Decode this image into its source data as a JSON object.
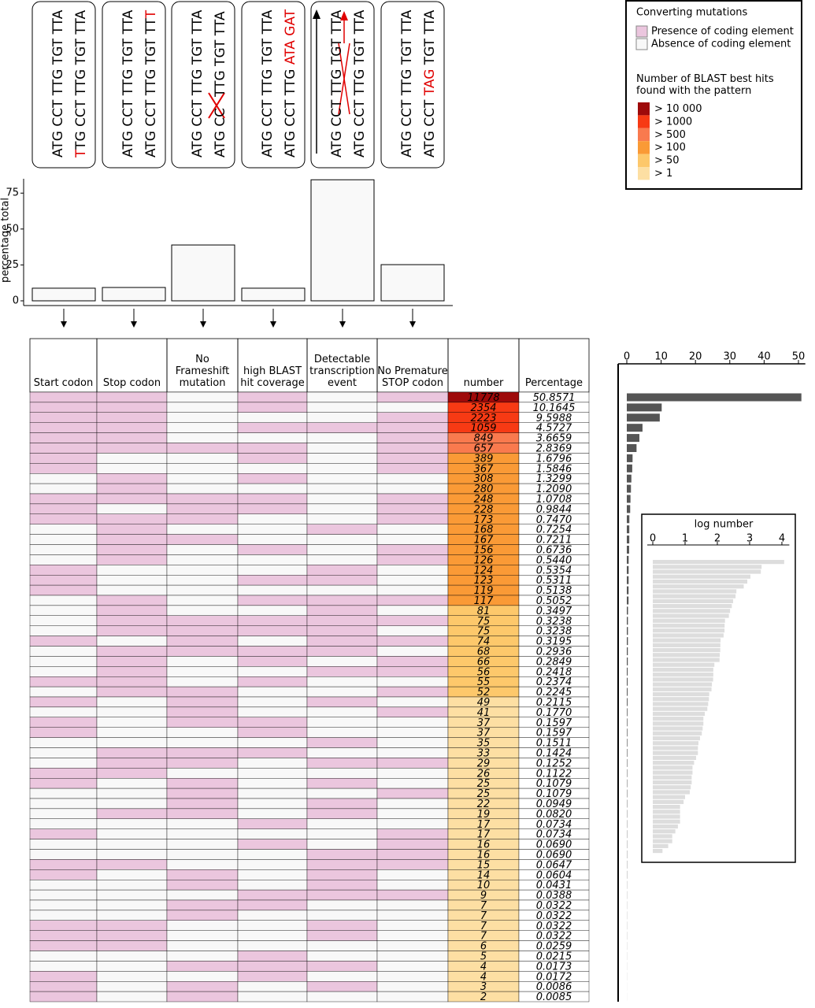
{
  "panels": [
    {
      "reference": "ATG CCT TTG TGT TTA",
      "mutant": [
        {
          "text": "T",
          "color": "#e00000"
        },
        {
          "text": "TG CCT TTG TGT TTA"
        }
      ]
    },
    {
      "reference": "ATG CCT TTG TGT TTA",
      "mutant": [
        {
          "text": "ATG CCT TTG TGT TT"
        },
        {
          "text": "T",
          "color": "#e00000"
        }
      ]
    },
    {
      "reference": "ATG CCT TTG TGT TTA",
      "mutant": [
        {
          "text": "ATG CC"
        },
        {
          "text": "TTG TGT TTA"
        }
      ]
    },
    {
      "reference": "ATG CCT TTG TGT TTA",
      "mutant": [
        {
          "text": "ATG CCT TTG "
        },
        {
          "text": "ATA GAT",
          "color": "#e00000"
        }
      ]
    },
    {
      "reference": "ATG CCT TTG TGT TTA",
      "mutant": [
        {
          "text": "ATG CCT TTG TGT TTA"
        }
      ]
    },
    {
      "reference": "ATG CCT TTG TGT TTA",
      "mutant": [
        {
          "text": "ATG CCT "
        },
        {
          "text": "TAG",
          "color": "#e00000"
        },
        {
          "text": " TGT TTA"
        }
      ]
    }
  ],
  "legend": {
    "title": "Converting mutations",
    "presence": {
      "label": "Presence of coding element",
      "color": "#ebc6de"
    },
    "absence": {
      "label": "Absence of coding element",
      "color": "#f8f8f8"
    },
    "heat_title": "Number of BLAST best hits found with the pattern",
    "bins": [
      {
        "value": 10000,
        "label": "> 10 000",
        "color": "#9e0a0a"
      },
      {
        "value": 1000,
        "label": "> 1000",
        "color": "#f73a14"
      },
      {
        "value": 500,
        "label": "> 500",
        "color": "#f97a4e"
      },
      {
        "value": 100,
        "label": "> 100",
        "color": "#fa9a36"
      },
      {
        "value": 50,
        "label": "> 50",
        "color": "#fdc86b"
      },
      {
        "value": 1,
        "label": "> 1",
        "color": "#fddfa3"
      }
    ]
  },
  "table": {
    "headers": [
      "Start codon",
      "Stop codon",
      "No Frameshift mutation",
      "high BLAST hit coverage",
      "Detectable transcription event",
      "No Premature STOP codon",
      "number",
      "Percentage"
    ],
    "patterns": [
      [
        true,
        true,
        false,
        true,
        false,
        true
      ],
      [
        true,
        true,
        false,
        true,
        false,
        false
      ],
      [
        true,
        true,
        false,
        false,
        false,
        true
      ],
      [
        true,
        true,
        false,
        true,
        true,
        true
      ],
      [
        true,
        true,
        false,
        false,
        false,
        true
      ],
      [
        true,
        true,
        true,
        true,
        false,
        true
      ],
      [
        true,
        false,
        false,
        true,
        false,
        true
      ],
      [
        true,
        false,
        false,
        false,
        false,
        true
      ],
      [
        false,
        true,
        false,
        true,
        false,
        false
      ],
      [
        false,
        true,
        false,
        false,
        false,
        false
      ],
      [
        true,
        true,
        true,
        true,
        false,
        true
      ],
      [
        true,
        false,
        true,
        true,
        false,
        true
      ],
      [
        true,
        true,
        true,
        false,
        false,
        true
      ],
      [
        false,
        true,
        false,
        false,
        true,
        false
      ],
      [
        false,
        true,
        true,
        false,
        false,
        false
      ],
      [
        false,
        true,
        false,
        true,
        false,
        true
      ],
      [
        false,
        true,
        false,
        false,
        false,
        true
      ],
      [
        true,
        false,
        false,
        false,
        true,
        false
      ],
      [
        true,
        false,
        false,
        true,
        true,
        false
      ],
      [
        true,
        false,
        false,
        false,
        false,
        false
      ],
      [
        false,
        true,
        false,
        true,
        true,
        true
      ],
      [
        false,
        true,
        false,
        false,
        true,
        false
      ],
      [
        false,
        true,
        true,
        true,
        true,
        true
      ],
      [
        false,
        true,
        true,
        true,
        true,
        false
      ],
      [
        true,
        false,
        true,
        false,
        true,
        true
      ],
      [
        false,
        true,
        true,
        true,
        true,
        false
      ],
      [
        false,
        true,
        false,
        true,
        false,
        true
      ],
      [
        false,
        true,
        false,
        false,
        true,
        true
      ],
      [
        true,
        true,
        false,
        true,
        false,
        false
      ],
      [
        false,
        true,
        true,
        false,
        false,
        true
      ],
      [
        true,
        false,
        true,
        false,
        true,
        false
      ],
      [
        false,
        false,
        true,
        false,
        false,
        true
      ],
      [
        true,
        false,
        true,
        true,
        false,
        false
      ],
      [
        true,
        false,
        false,
        true,
        false,
        false
      ],
      [
        false,
        false,
        false,
        false,
        true,
        false
      ],
      [
        false,
        true,
        true,
        true,
        false,
        false
      ],
      [
        false,
        true,
        true,
        false,
        true,
        true
      ],
      [
        true,
        true,
        false,
        false,
        false,
        false
      ],
      [
        true,
        false,
        true,
        false,
        true,
        false
      ],
      [
        false,
        false,
        true,
        false,
        false,
        true
      ],
      [
        false,
        false,
        true,
        false,
        true,
        false
      ],
      [
        false,
        true,
        true,
        false,
        true,
        false
      ],
      [
        false,
        false,
        false,
        true,
        false,
        false
      ],
      [
        true,
        false,
        false,
        false,
        false,
        true
      ],
      [
        false,
        false,
        false,
        true,
        false,
        true
      ],
      [
        false,
        false,
        false,
        false,
        true,
        true
      ],
      [
        true,
        true,
        false,
        false,
        true,
        true
      ],
      [
        true,
        false,
        true,
        false,
        true,
        false
      ],
      [
        false,
        false,
        true,
        false,
        true,
        false
      ],
      [
        false,
        false,
        false,
        true,
        true,
        true
      ],
      [
        false,
        false,
        true,
        true,
        false,
        false
      ],
      [
        false,
        false,
        true,
        false,
        false,
        false
      ],
      [
        true,
        true,
        false,
        false,
        true,
        false
      ],
      [
        true,
        true,
        false,
        false,
        true,
        false
      ],
      [
        true,
        true,
        false,
        false,
        false,
        false
      ],
      [
        false,
        false,
        false,
        true,
        false,
        false
      ],
      [
        false,
        false,
        true,
        true,
        true,
        false
      ],
      [
        true,
        false,
        false,
        true,
        false,
        false
      ],
      [
        true,
        false,
        true,
        false,
        true,
        false
      ],
      [
        true,
        false,
        true,
        false,
        false,
        false
      ]
    ]
  },
  "chart_data": [
    {
      "type": "bar",
      "ylabel": "percentage total",
      "values": [
        8.8,
        9.3,
        38.9,
        8.8,
        84.3,
        25.2
      ],
      "ylim": [
        0,
        85
      ],
      "yticks": [
        0,
        25,
        50,
        75
      ],
      "color": "#f9f9f9"
    },
    {
      "type": "bar",
      "orientation": "horizontal",
      "color": "#555555",
      "xlim": [
        0,
        52
      ],
      "xticks": [
        0,
        10,
        20,
        30,
        40,
        50
      ],
      "values": [
        50.8571,
        10.1645,
        9.5988,
        4.5727,
        3.6659,
        2.8369,
        1.6796,
        1.5846,
        1.3299,
        1.209,
        1.0708,
        0.9844,
        0.747,
        0.7254,
        0.7211,
        0.6736,
        0.544,
        0.5354,
        0.5311,
        0.5138,
        0.5052,
        0.3497,
        0.3238,
        0.3238,
        0.3195,
        0.2936,
        0.2849,
        0.2418,
        0.2374,
        0.2245,
        0.2115,
        0.177,
        0.1597,
        0.1597,
        0.1511,
        0.1424,
        0.1252,
        0.1122,
        0.1079,
        0.1079,
        0.0949,
        0.082,
        0.0734,
        0.0734,
        0.069,
        0.069,
        0.0647,
        0.0604,
        0.0431,
        0.0388,
        0.0322,
        0.0322,
        0.0322,
        0.0322,
        0.0259,
        0.0215,
        0.0173,
        0.0172,
        0.0086,
        0.0085
      ],
      "value_labels": [
        "50.8571",
        "10.1645",
        "9.5988",
        "4.5727",
        "3.6659",
        "2.8369",
        "1.6796",
        "1.5846",
        "1.3299",
        "1.2090",
        "1.0708",
        "0.9844",
        "0.7470",
        "0.7254",
        "0.7211",
        "0.6736",
        "0.5440",
        "0.5354",
        "0.5311",
        "0.5138",
        "0.5052",
        "0.3497",
        "0.3238",
        "0.3238",
        "0.3195",
        "0.2936",
        "0.2849",
        "0.2418",
        "0.2374",
        "0.2245",
        "0.2115",
        "0.1770",
        "0.1597",
        "0.1597",
        "0.1511",
        "0.1424",
        "0.1252",
        "0.1122",
        "0.1079",
        "0.1079",
        "0.0949",
        "0.0820",
        "0.0734",
        "0.0734",
        "0.0690",
        "0.0690",
        "0.0647",
        "0.0604",
        "0.0431",
        "0.0388",
        "0.0322",
        "0.0322",
        "0.0322",
        "0.0322",
        "0.0259",
        "0.0215",
        "0.0173",
        "0.0172",
        "0.0086",
        "0.0085"
      ]
    },
    {
      "type": "bar",
      "orientation": "horizontal",
      "title": "log number",
      "log_scale": true,
      "color": "#dddddd",
      "xlim": [
        1,
        17000
      ],
      "xticks": [
        {
          "value": 1,
          "label": "0"
        },
        {
          "value": 10,
          "label": "1"
        },
        {
          "value": 100,
          "label": "2"
        },
        {
          "value": 1000,
          "label": "3"
        },
        {
          "value": 10000,
          "label": "4"
        }
      ],
      "values": [
        11778,
        2354,
        2223,
        1059,
        849,
        657,
        389,
        367,
        308,
        280,
        248,
        228,
        173,
        168,
        167,
        156,
        126,
        124,
        123,
        119,
        117,
        81,
        75,
        75,
        74,
        68,
        66,
        56,
        55,
        52,
        49,
        41,
        37,
        37,
        35,
        33,
        29,
        26,
        25,
        25,
        22,
        19,
        17,
        17,
        16,
        16,
        15,
        14,
        10,
        9,
        7,
        7,
        7,
        7,
        6,
        5,
        4,
        4,
        3,
        2
      ]
    }
  ]
}
